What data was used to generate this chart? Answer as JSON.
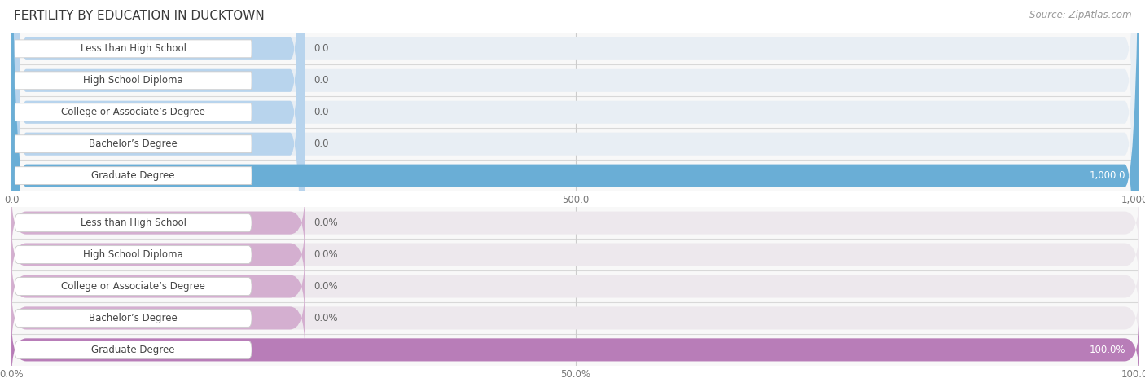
{
  "title": "FERTILITY BY EDUCATION IN DUCKTOWN",
  "source": "Source: ZipAtlas.com",
  "categories": [
    "Less than High School",
    "High School Diploma",
    "College or Associate’s Degree",
    "Bachelor’s Degree",
    "Graduate Degree"
  ],
  "values_abs": [
    0.0,
    0.0,
    0.0,
    0.0,
    1000.0
  ],
  "values_pct": [
    0.0,
    0.0,
    0.0,
    0.0,
    100.0
  ],
  "xlim_abs_max": 1000.0,
  "xlim_pct_max": 100.0,
  "xticks_abs": [
    0.0,
    500.0,
    1000.0
  ],
  "xticks_pct": [
    0.0,
    50.0,
    100.0
  ],
  "xticklabels_abs": [
    "0.0",
    "500.0",
    "1,000.0"
  ],
  "xticklabels_pct": [
    "0.0%",
    "50.0%",
    "100.0%"
  ],
  "bar_color_abs_zero": "#b8d4ed",
  "bar_color_abs_full": "#6aaed6",
  "bar_bg_abs": "#e8eef4",
  "bar_color_pct_zero": "#d4afd0",
  "bar_color_pct_full": "#b87db8",
  "bar_bg_pct": "#ede8ed",
  "row_sep_color": "#d0d0d0",
  "title_color": "#3a3a3a",
  "source_color": "#999999",
  "cat_label_color": "#444444",
  "value_color_dark": "#666666",
  "value_color_light": "#ffffff",
  "title_fontsize": 11,
  "label_fontsize": 8.5,
  "value_fontsize": 8.5,
  "tick_fontsize": 8.5
}
